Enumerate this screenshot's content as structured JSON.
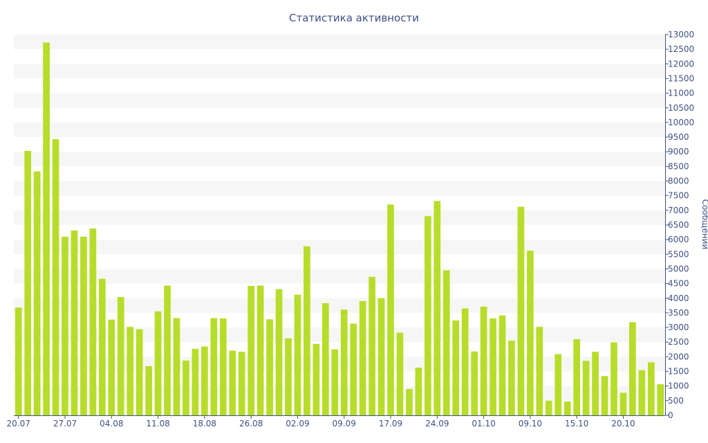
{
  "chart_data": {
    "type": "bar",
    "title": "Статистика активности",
    "ylabel": "Сообщений",
    "ylim": [
      0,
      13000
    ],
    "y_ticks": [
      0,
      500,
      1000,
      1500,
      2000,
      2500,
      3000,
      3500,
      4000,
      4500,
      5000,
      5500,
      6000,
      6500,
      7000,
      7500,
      8000,
      8500,
      9000,
      9500,
      10000,
      10500,
      11000,
      11500,
      12000,
      12500,
      13000
    ],
    "x_ticks": [
      {
        "label": "20.07",
        "index": 0
      },
      {
        "label": "27.07",
        "index": 5
      },
      {
        "label": "04.08",
        "index": 10
      },
      {
        "label": "11.08",
        "index": 15
      },
      {
        "label": "18.08",
        "index": 20
      },
      {
        "label": "26.08",
        "index": 25
      },
      {
        "label": "02.09",
        "index": 30
      },
      {
        "label": "09.09",
        "index": 35
      },
      {
        "label": "17.09",
        "index": 40
      },
      {
        "label": "24.09",
        "index": 45
      },
      {
        "label": "01.10",
        "index": 50
      },
      {
        "label": "09.10",
        "index": 55
      },
      {
        "label": "15.10",
        "index": 60
      },
      {
        "label": "20.10",
        "index": 65
      }
    ],
    "values": [
      3680,
      9030,
      8330,
      12730,
      9430,
      6100,
      6310,
      6100,
      6380,
      4660,
      3270,
      4040,
      3020,
      2940,
      1680,
      3550,
      4430,
      3320,
      1870,
      2270,
      2350,
      3320,
      3310,
      2210,
      2170,
      4420,
      4430,
      3280,
      4310,
      2630,
      4120,
      5770,
      2440,
      3830,
      2250,
      3610,
      3130,
      3900,
      4730,
      4000,
      7200,
      2820,
      900,
      1630,
      6800,
      7320,
      4950,
      3240,
      3650,
      2180,
      3710,
      3310,
      3410,
      2550,
      7120,
      5620,
      3020,
      500,
      2090,
      470,
      2600,
      1860,
      2170,
      1340,
      2490,
      770,
      3180,
      1540,
      1810,
      1060
    ],
    "grid": "horizontal-bands",
    "legend": "none",
    "colors": {
      "bar": "#b7dd2a",
      "band": "#f6f6f6",
      "axis": "#3e4f86",
      "text": "#3e4f86"
    }
  }
}
